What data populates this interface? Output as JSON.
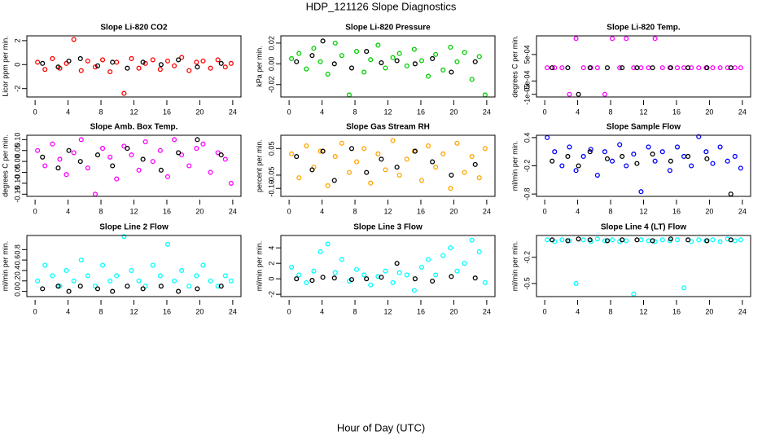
{
  "title": "HDP_121126  Slope Diagnostics",
  "x_label": "Hour of Day (UTC)",
  "chart_data": [
    {
      "type": "scatter",
      "title": "Slope Li-820 CO2",
      "y_label": "Licor ppm per min.",
      "xlim": [
        -1,
        25
      ],
      "xticks": [
        0,
        4,
        8,
        12,
        16,
        20,
        24
      ],
      "ylim": [
        -2.7,
        2.4
      ],
      "yticks": [
        -2,
        0,
        2
      ],
      "series": [
        {
          "color": "#ff0000",
          "x": [
            0.3,
            1.2,
            2.1,
            3.0,
            3.8,
            4.7,
            5.6,
            6.4,
            7.3,
            8.2,
            9.1,
            9.9,
            10.8,
            11.7,
            12.6,
            13.4,
            14.3,
            15.2,
            16.1,
            16.9,
            17.8,
            18.7,
            19.6,
            20.4,
            21.3,
            22.2,
            23.1,
            23.8
          ],
          "values": [
            0.2,
            -0.4,
            0.5,
            -0.3,
            0.1,
            2.1,
            -0.5,
            0.3,
            -0.2,
            0.4,
            -0.6,
            0.2,
            -2.4,
            0.5,
            -0.3,
            0.1,
            0.4,
            -0.4,
            0.3,
            -0.1,
            0.6,
            -0.5,
            0.2,
            0.3,
            -0.3,
            0.4,
            -0.2,
            0.1
          ]
        },
        {
          "color": "#000000",
          "x": [
            0.9,
            2.8,
            4.1,
            5.5,
            7.6,
            9.4,
            11.2,
            13.1,
            15.3,
            17.4,
            19.7,
            22.6
          ],
          "values": [
            0.1,
            -0.2,
            0.3,
            0.5,
            -0.1,
            0.2,
            -0.3,
            0.2,
            0.0,
            0.4,
            -0.2,
            0.1
          ]
        }
      ]
    },
    {
      "type": "scatter",
      "title": "Slope Li-820 Pressure",
      "y_label": "kPa per min.",
      "xlim": [
        -1,
        25
      ],
      "xticks": [
        0,
        4,
        8,
        12,
        16,
        20,
        24
      ],
      "ylim": [
        -0.032,
        0.027
      ],
      "yticks": [
        -0.02,
        {
          "value": 0,
          "label": "0.00"
        },
        0.02
      ],
      "series": [
        {
          "color": "#00cc00",
          "x": [
            0.3,
            1.2,
            2.1,
            3.0,
            3.8,
            4.7,
            5.6,
            6.4,
            7.3,
            8.2,
            9.1,
            9.9,
            10.8,
            11.7,
            12.6,
            13.4,
            14.3,
            15.2,
            16.1,
            16.9,
            17.8,
            18.7,
            19.6,
            20.4,
            21.3,
            22.2,
            23.1,
            23.8
          ],
          "values": [
            0.005,
            0.01,
            -0.005,
            0.015,
            0.002,
            -0.01,
            0.02,
            0.008,
            -0.03,
            0.012,
            -0.008,
            0.004,
            0.018,
            -0.004,
            0.006,
            0.01,
            -0.002,
            0.014,
            0.003,
            -0.012,
            0.009,
            -0.006,
            0.016,
            0.002,
            0.011,
            -0.015,
            0.007,
            -0.03
          ]
        },
        {
          "color": "#000000",
          "x": [
            0.9,
            2.8,
            4.1,
            5.5,
            7.6,
            9.4,
            11.2,
            13.1,
            15.3,
            17.4,
            19.7,
            22.6
          ],
          "values": [
            0.002,
            0.008,
            0.022,
            0.0,
            -0.004,
            0.012,
            0.001,
            0.003,
            0.0,
            0.005,
            -0.008,
            0.002
          ]
        }
      ]
    },
    {
      "type": "scatter",
      "title": "Slope Li-820 Temp.",
      "y_label": "degrees C per min.",
      "xlim": [
        -1,
        25
      ],
      "xticks": [
        0,
        4,
        8,
        12,
        16,
        20,
        24
      ],
      "ylim": [
        -0.0011,
        0.0012
      ],
      "yticks": [
        {
          "value": -0.001,
          "label": "-1e-03"
        },
        {
          "value": -0.0005,
          "label": "-5e-04"
        },
        {
          "value": 0.0005,
          "label": "5e-04"
        }
      ],
      "series": [
        {
          "color": "#ff00ff",
          "x": [
            0.3,
            1.2,
            2.1,
            3.0,
            3.8,
            4.7,
            5.6,
            6.4,
            7.3,
            8.2,
            9.1,
            9.9,
            10.8,
            11.7,
            12.6,
            13.4,
            14.3,
            15.2,
            16.1,
            16.9,
            17.8,
            18.7,
            19.6,
            20.4,
            21.3,
            22.2,
            23.1,
            23.8
          ],
          "values": [
            0,
            0,
            0,
            -0.001,
            0.0011,
            0,
            0,
            0,
            -0.001,
            0.0011,
            0,
            0.0011,
            0,
            0,
            0,
            0.0011,
            0,
            0,
            0,
            0,
            0,
            0,
            0,
            0,
            0,
            0,
            0,
            0
          ]
        },
        {
          "color": "#000000",
          "x": [
            0.9,
            2.8,
            4.1,
            5.5,
            7.6,
            9.4,
            11.2,
            13.1,
            15.3,
            17.4,
            19.7,
            22.6
          ],
          "values": [
            0,
            0,
            -0.001,
            0,
            0,
            0,
            0,
            0,
            0,
            0,
            0,
            0
          ]
        }
      ]
    },
    {
      "type": "scatter",
      "title": "Slope Amb. Box Temp.",
      "y_label": "degrees C per min.",
      "xlim": [
        -1,
        25
      ],
      "xticks": [
        0,
        4,
        8,
        12,
        16,
        20,
        24
      ],
      "ylim": [
        -0.16,
        0.12
      ],
      "yticks": [
        {
          "value": -0.15,
          "label": "-0.15"
        },
        {
          "value": -0.1,
          "label": "-0.10"
        },
        -0.05,
        {
          "value": 0,
          "label": "0.00"
        },
        0.05,
        {
          "value": 0.1,
          "label": "0.10"
        }
      ],
      "series": [
        {
          "color": "#ff00ff",
          "x": [
            0.3,
            1.2,
            2.1,
            3.0,
            3.8,
            4.7,
            5.6,
            6.4,
            7.3,
            8.2,
            9.1,
            9.9,
            10.8,
            11.7,
            12.6,
            13.4,
            14.3,
            15.2,
            16.1,
            16.9,
            17.8,
            18.7,
            19.6,
            20.4,
            21.3,
            22.2,
            23.1,
            23.8
          ],
          "values": [
            0.05,
            -0.02,
            0.08,
            0.01,
            -0.06,
            0.04,
            0.1,
            -0.03,
            -0.15,
            0.06,
            0.02,
            -0.08,
            0.07,
            0.03,
            -0.04,
            0.09,
            0.0,
            0.05,
            -0.07,
            0.1,
            0.03,
            -0.02,
            0.06,
            0.08,
            -0.05,
            0.04,
            0.01,
            -0.1
          ]
        },
        {
          "color": "#000000",
          "x": [
            0.9,
            2.8,
            4.1,
            5.5,
            7.6,
            9.4,
            11.2,
            13.1,
            15.3,
            17.4,
            19.7,
            22.6
          ],
          "values": [
            0.02,
            -0.03,
            0.05,
            0.0,
            0.03,
            -0.02,
            0.06,
            0.01,
            -0.04,
            0.04,
            0.1,
            0.03
          ]
        }
      ]
    },
    {
      "type": "scatter",
      "title": "Slope Gas Stream RH",
      "y_label": "percent per min.",
      "xlim": [
        -1,
        25
      ],
      "xticks": [
        0,
        4,
        8,
        12,
        16,
        20,
        24
      ],
      "ylim": [
        -0.13,
        0.1
      ],
      "yticks": [
        {
          "value": -0.1,
          "label": "-0.10"
        },
        -0.05,
        0.05
      ],
      "series": [
        {
          "color": "#ffa500",
          "x": [
            0.3,
            1.2,
            2.1,
            3.0,
            3.8,
            4.7,
            5.6,
            6.4,
            7.3,
            8.2,
            9.1,
            9.9,
            10.8,
            11.7,
            12.6,
            13.4,
            14.3,
            15.2,
            16.1,
            16.9,
            17.8,
            18.7,
            19.6,
            20.4,
            21.3,
            22.2,
            23.1,
            23.8
          ],
          "values": [
            0.03,
            -0.06,
            0.06,
            -0.02,
            0.04,
            -0.09,
            0.02,
            0.07,
            -0.04,
            0.0,
            0.05,
            -0.08,
            0.03,
            -0.03,
            0.08,
            -0.05,
            0.01,
            0.04,
            -0.07,
            0.06,
            -0.02,
            0.03,
            -0.1,
            0.07,
            -0.04,
            0.02,
            -0.06,
            0.05
          ]
        },
        {
          "color": "#000000",
          "x": [
            0.9,
            2.8,
            4.1,
            5.5,
            7.6,
            9.4,
            11.2,
            13.1,
            15.3,
            17.4,
            19.7,
            22.6
          ],
          "values": [
            0.02,
            -0.03,
            0.04,
            -0.07,
            0.05,
            -0.04,
            0.01,
            -0.02,
            0.04,
            0.0,
            -0.05,
            -0.01
          ]
        }
      ]
    },
    {
      "type": "scatter",
      "title": "Slope Sample Flow",
      "y_label": "ml/min per min.",
      "xlim": [
        -1,
        25
      ],
      "xticks": [
        0,
        4,
        8,
        12,
        16,
        20,
        24
      ],
      "ylim": [
        -0.85,
        0.45
      ],
      "yticks": [
        -0.8,
        -0.2,
        0.4
      ],
      "series": [
        {
          "color": "#0000ff",
          "x": [
            0.3,
            1.2,
            2.1,
            3.0,
            3.8,
            4.7,
            5.6,
            6.4,
            7.3,
            8.2,
            9.1,
            9.9,
            10.8,
            11.7,
            12.6,
            13.4,
            14.3,
            15.2,
            16.1,
            16.9,
            17.8,
            18.7,
            19.6,
            20.4,
            21.3,
            22.2,
            23.1,
            23.8
          ],
          "values": [
            0.4,
            0.1,
            -0.2,
            0.2,
            -0.3,
            0.0,
            0.15,
            -0.4,
            0.1,
            -0.1,
            0.25,
            -0.2,
            0.05,
            -0.75,
            0.2,
            -0.1,
            0.1,
            -0.3,
            0.2,
            0.0,
            -0.2,
            0.42,
            0.1,
            -0.15,
            0.2,
            -0.1,
            0.0,
            -0.25
          ]
        },
        {
          "color": "#000000",
          "x": [
            0.9,
            2.8,
            4.1,
            5.5,
            7.6,
            9.4,
            11.2,
            13.1,
            15.3,
            17.4,
            19.7,
            22.6
          ],
          "values": [
            -0.1,
            0.0,
            -0.2,
            0.1,
            -0.05,
            0.0,
            -0.15,
            0.05,
            -0.1,
            0.0,
            -0.05,
            -0.8
          ]
        }
      ]
    },
    {
      "type": "scatter",
      "title": "Slope Line 2 Flow",
      "y_label": "ml/min per min.",
      "xlim": [
        -1,
        25
      ],
      "xticks": [
        0,
        4,
        8,
        12,
        16,
        20,
        24
      ],
      "ylim": [
        -0.1,
        1.07
      ],
      "yticks": [
        {
          "value": 0,
          "label": "0.0"
        },
        0.2,
        0.4,
        0.6,
        0.8
      ],
      "series": [
        {
          "color": "#00ffff",
          "x": [
            0.3,
            1.2,
            2.1,
            3.0,
            3.8,
            4.7,
            5.6,
            6.4,
            7.3,
            8.2,
            9.1,
            9.9,
            10.8,
            11.7,
            12.6,
            13.4,
            14.3,
            15.2,
            16.1,
            16.9,
            17.8,
            18.7,
            19.6,
            20.4,
            21.3,
            22.2,
            23.1,
            23.8
          ],
          "values": [
            0.2,
            0.5,
            0.3,
            0.1,
            0.4,
            0.2,
            0.6,
            0.3,
            0.1,
            0.5,
            0.2,
            0.3,
            1.05,
            0.4,
            0.2,
            0.1,
            0.5,
            0.3,
            0.9,
            0.2,
            0.4,
            0.1,
            0.3,
            0.5,
            0.2,
            0.1,
            0.3,
            0.2
          ]
        },
        {
          "color": "#000000",
          "x": [
            0.9,
            2.8,
            4.1,
            5.5,
            7.6,
            9.4,
            11.2,
            13.1,
            15.3,
            17.4,
            19.7,
            22.6
          ],
          "values": [
            0.05,
            0.1,
            0.0,
            0.1,
            0.05,
            0.0,
            0.1,
            0.05,
            0.1,
            0.0,
            0.05,
            0.1
          ]
        }
      ]
    },
    {
      "type": "scatter",
      "title": "Slope Line 3 Flow",
      "y_label": "ml/min per min.",
      "xlim": [
        -1,
        25
      ],
      "xticks": [
        0,
        4,
        8,
        12,
        16,
        20,
        24
      ],
      "ylim": [
        -2.3,
        5.6
      ],
      "yticks": [
        -2,
        0,
        2,
        4
      ],
      "series": [
        {
          "color": "#00ffff",
          "x": [
            0.3,
            1.2,
            2.1,
            3.0,
            3.8,
            4.7,
            5.6,
            6.4,
            7.3,
            8.2,
            9.1,
            9.9,
            10.8,
            11.7,
            12.6,
            13.4,
            14.3,
            15.2,
            16.1,
            16.9,
            17.8,
            18.7,
            19.6,
            20.4,
            21.3,
            22.2,
            23.1,
            23.8
          ],
          "values": [
            1.5,
            0.5,
            -0.5,
            1.0,
            3.5,
            4.5,
            0.8,
            2.5,
            -0.3,
            1.2,
            0.5,
            -0.8,
            0.3,
            1.0,
            -0.5,
            0.8,
            0.5,
            -1.5,
            1.5,
            2.5,
            0.5,
            3.0,
            4.0,
            1.0,
            2.0,
            5.0,
            3.5,
            -0.5
          ]
        },
        {
          "color": "#000000",
          "x": [
            0.9,
            2.8,
            4.1,
            5.5,
            7.6,
            9.4,
            11.2,
            13.1,
            15.3,
            17.4,
            19.7,
            22.6
          ],
          "values": [
            0.0,
            -0.2,
            0.2,
            0.1,
            -0.1,
            0.0,
            0.2,
            2.0,
            0.0,
            -0.3,
            0.3,
            0.1
          ]
        }
      ]
    },
    {
      "type": "scatter",
      "title": "Slope Line 4 (LT) Flow",
      "y_label": "ml/min per min.",
      "xlim": [
        -1,
        25
      ],
      "xticks": [
        0,
        4,
        8,
        12,
        16,
        20,
        24
      ],
      "ylim": [
        -0.65,
        0.05
      ],
      "yticks": [
        -0.5,
        -0.2
      ],
      "series": [
        {
          "color": "#00ffff",
          "x": [
            0.3,
            1.2,
            2.1,
            3.0,
            3.8,
            4.7,
            5.6,
            6.4,
            7.3,
            8.2,
            9.1,
            9.9,
            10.8,
            11.7,
            12.6,
            13.4,
            14.3,
            15.2,
            16.1,
            16.9,
            17.8,
            18.7,
            19.6,
            20.4,
            21.3,
            22.2,
            23.1,
            23.8
          ],
          "values": [
            0.0,
            -0.02,
            0.0,
            -0.01,
            -0.5,
            0.0,
            -0.02,
            0.01,
            -0.01,
            0.0,
            -0.02,
            -0.01,
            -0.62,
            0.0,
            -0.01,
            -0.02,
            0.0,
            -0.01,
            0.0,
            -0.55,
            -0.02,
            0.0,
            -0.01,
            0.0,
            -0.02,
            0.01,
            -0.01,
            0.0
          ]
        },
        {
          "color": "#000000",
          "x": [
            0.9,
            2.8,
            4.1,
            5.5,
            7.6,
            9.4,
            11.2,
            13.1,
            15.3,
            17.4,
            19.7,
            22.6
          ],
          "values": [
            0.0,
            -0.01,
            0.01,
            0.0,
            -0.01,
            0.0,
            0.0,
            -0.01,
            0.01,
            0.0,
            -0.01,
            0.0
          ]
        }
      ]
    }
  ]
}
